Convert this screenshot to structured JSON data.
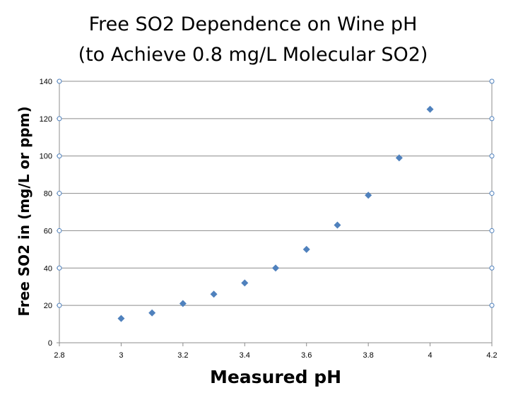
{
  "chart_data": {
    "type": "scatter",
    "title_lines": [
      "Free SO2 Dependence on Wine pH",
      "(to Achieve 0.8 mg/L Molecular SO2)"
    ],
    "xlabel": "Measured pH",
    "ylabel": "Free SO2 in (mg/L or ppm)",
    "xlim": [
      2.8,
      4.2
    ],
    "ylim": [
      0,
      140
    ],
    "x_ticks": [
      "2.8",
      "3",
      "3.2",
      "3.4",
      "3.6",
      "3.8",
      "4",
      "4.2"
    ],
    "x_tick_values": [
      2.8,
      3.0,
      3.2,
      3.4,
      3.6,
      3.8,
      4.0,
      4.2
    ],
    "y_ticks": [
      "0",
      "20",
      "40",
      "60",
      "80",
      "100",
      "120",
      "140"
    ],
    "y_tick_values": [
      0,
      20,
      40,
      60,
      80,
      100,
      120,
      140
    ],
    "grid": "horizontal",
    "marker": "diamond",
    "series": [
      {
        "color": "#4F81BD",
        "points": [
          {
            "x": 3.0,
            "y": 13
          },
          {
            "x": 3.1,
            "y": 16
          },
          {
            "x": 3.2,
            "y": 21
          },
          {
            "x": 3.3,
            "y": 26
          },
          {
            "x": 3.4,
            "y": 32
          },
          {
            "x": 3.5,
            "y": 40
          },
          {
            "x": 3.6,
            "y": 50
          },
          {
            "x": 3.7,
            "y": 63
          },
          {
            "x": 3.8,
            "y": 79
          },
          {
            "x": 3.9,
            "y": 99
          },
          {
            "x": 4.0,
            "y": 125
          }
        ]
      }
    ]
  }
}
